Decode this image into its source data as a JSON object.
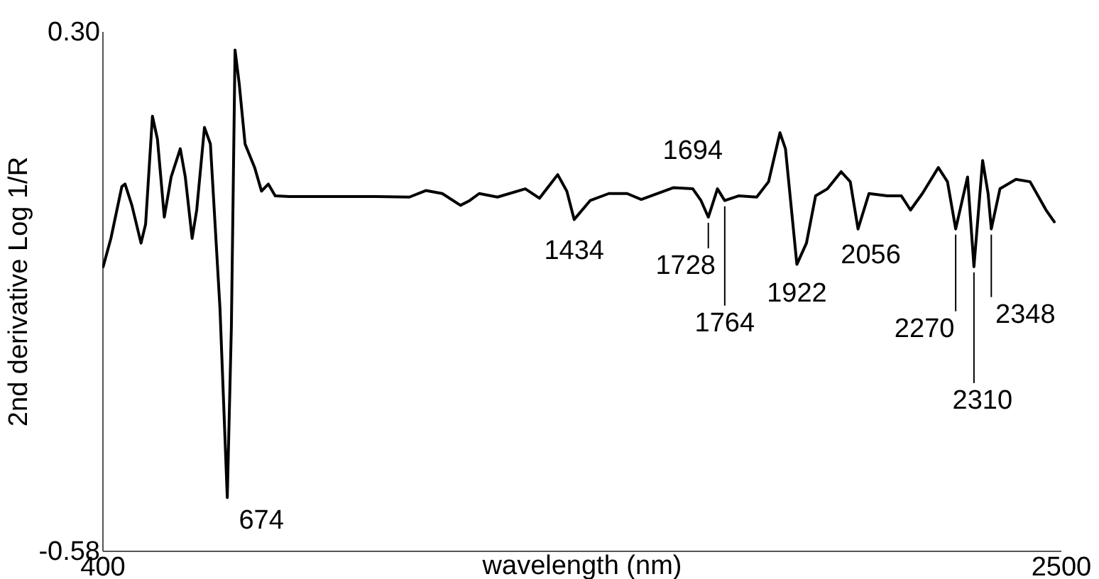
{
  "chart_data": {
    "type": "line",
    "xlabel": "wavelength (nm)",
    "ylabel": "2nd derivative Log 1/R",
    "xlim": [
      400,
      2500
    ],
    "xticks": [
      400,
      2500
    ],
    "ylim": [
      -0.58,
      0.3
    ],
    "yticks": [
      {
        "value": 0.3,
        "label": "0.30"
      },
      -0.58
    ],
    "grid": false,
    "marker": "none",
    "line_style": "solid",
    "series": [
      {
        "color": "#000000",
        "x": [
          402,
          419,
          443,
          450,
          465,
          485,
          495,
          510,
          521,
          536,
          551,
          571,
          582,
          597,
          607,
          624,
          637,
          658,
          674,
          683,
          691,
          700,
          713,
          734,
          749,
          764,
          779,
          810,
          900,
          1000,
          1073,
          1109,
          1145,
          1185,
          1205,
          1226,
          1266,
          1327,
          1358,
          1398,
          1418,
          1434,
          1469,
          1510,
          1550,
          1581,
          1652,
          1694,
          1712,
          1728,
          1748,
          1764,
          1794,
          1834,
          1860,
          1885,
          1897,
          1922,
          1943,
          1963,
          1989,
          2019,
          2039,
          2056,
          2080,
          2120,
          2151,
          2171,
          2197,
          2232,
          2252,
          2270,
          2296,
          2310,
          2329,
          2341,
          2348,
          2367,
          2402,
          2433,
          2468,
          2486
        ],
        "values": [
          -0.099,
          -0.051,
          0.037,
          0.041,
          0.005,
          -0.059,
          -0.027,
          0.156,
          0.117,
          -0.015,
          0.053,
          0.101,
          0.053,
          -0.051,
          -0.003,
          0.137,
          0.109,
          -0.17,
          -0.49,
          -0.2,
          0.268,
          0.212,
          0.109,
          0.069,
          0.029,
          0.041,
          0.021,
          0.02,
          0.02,
          0.02,
          0.019,
          0.03,
          0.025,
          0.005,
          0.013,
          0.025,
          0.019,
          0.033,
          0.017,
          0.057,
          0.029,
          -0.019,
          0.013,
          0.025,
          0.025,
          0.015,
          0.035,
          0.033,
          0.013,
          -0.015,
          0.033,
          0.013,
          0.021,
          0.019,
          0.045,
          0.128,
          0.101,
          -0.095,
          -0.059,
          0.021,
          0.033,
          0.062,
          0.045,
          -0.035,
          0.025,
          0.021,
          0.021,
          -0.003,
          0.025,
          0.069,
          0.045,
          -0.035,
          0.053,
          -0.099,
          0.081,
          0.025,
          -0.035,
          0.033,
          0.049,
          0.045,
          -0.003,
          -0.023
        ]
      }
    ],
    "annotations": [
      {
        "text": "674",
        "x": 674,
        "y": -0.49
      },
      {
        "text": "1694",
        "x": 1694,
        "y": 0.035
      },
      {
        "text": "1434",
        "x": 1434,
        "y": -0.019
      },
      {
        "text": "1728",
        "x": 1728,
        "y": -0.015
      },
      {
        "text": "1764",
        "x": 1764,
        "y": 0.013
      },
      {
        "text": "1922",
        "x": 1922,
        "y": -0.095
      },
      {
        "text": "2056",
        "x": 2056,
        "y": -0.035
      },
      {
        "text": "2270",
        "x": 2270,
        "y": -0.035
      },
      {
        "text": "2310",
        "x": 2310,
        "y": -0.099
      },
      {
        "text": "2348",
        "x": 2348,
        "y": -0.035
      }
    ]
  }
}
